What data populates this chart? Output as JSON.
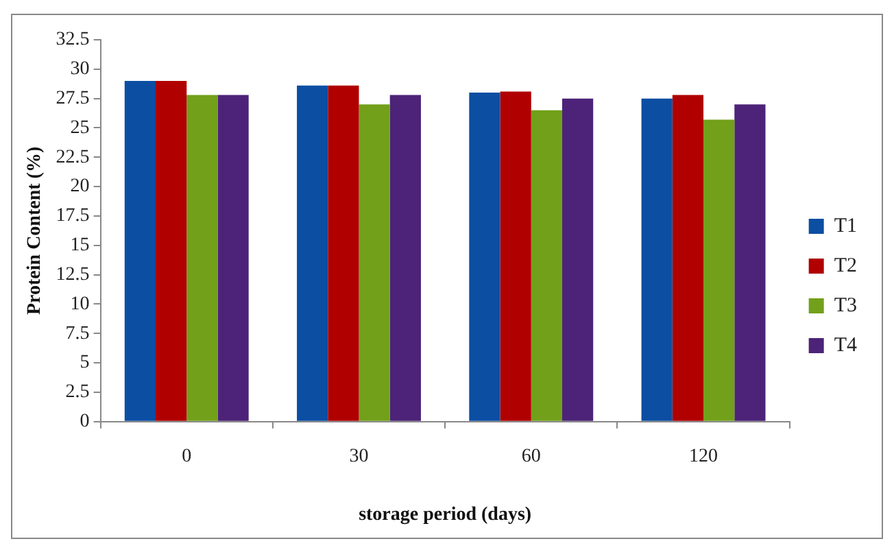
{
  "chart_data": {
    "type": "bar",
    "xlabel": "storage period (days)",
    "ylabel": "Protein Content (%)",
    "categories": [
      "0",
      "30",
      "60",
      "120"
    ],
    "series": [
      {
        "name": "T1",
        "color": "#0b4ea2",
        "values": [
          29.0,
          28.6,
          28.0,
          27.5
        ]
      },
      {
        "name": "T2",
        "color": "#b00000",
        "values": [
          29.0,
          28.6,
          28.1,
          27.8
        ]
      },
      {
        "name": "T3",
        "color": "#72a01a",
        "values": [
          27.8,
          27.0,
          26.5,
          25.7
        ]
      },
      {
        "name": "T4",
        "color": "#4c2378",
        "values": [
          27.8,
          27.8,
          27.5,
          27.0
        ]
      }
    ],
    "ylim": [
      0,
      32.5
    ],
    "yticks": [
      0,
      2.5,
      5,
      7.5,
      10,
      12.5,
      15,
      17.5,
      20,
      22.5,
      25,
      27.5,
      30,
      32.5
    ],
    "grid": false,
    "legend": "right"
  }
}
